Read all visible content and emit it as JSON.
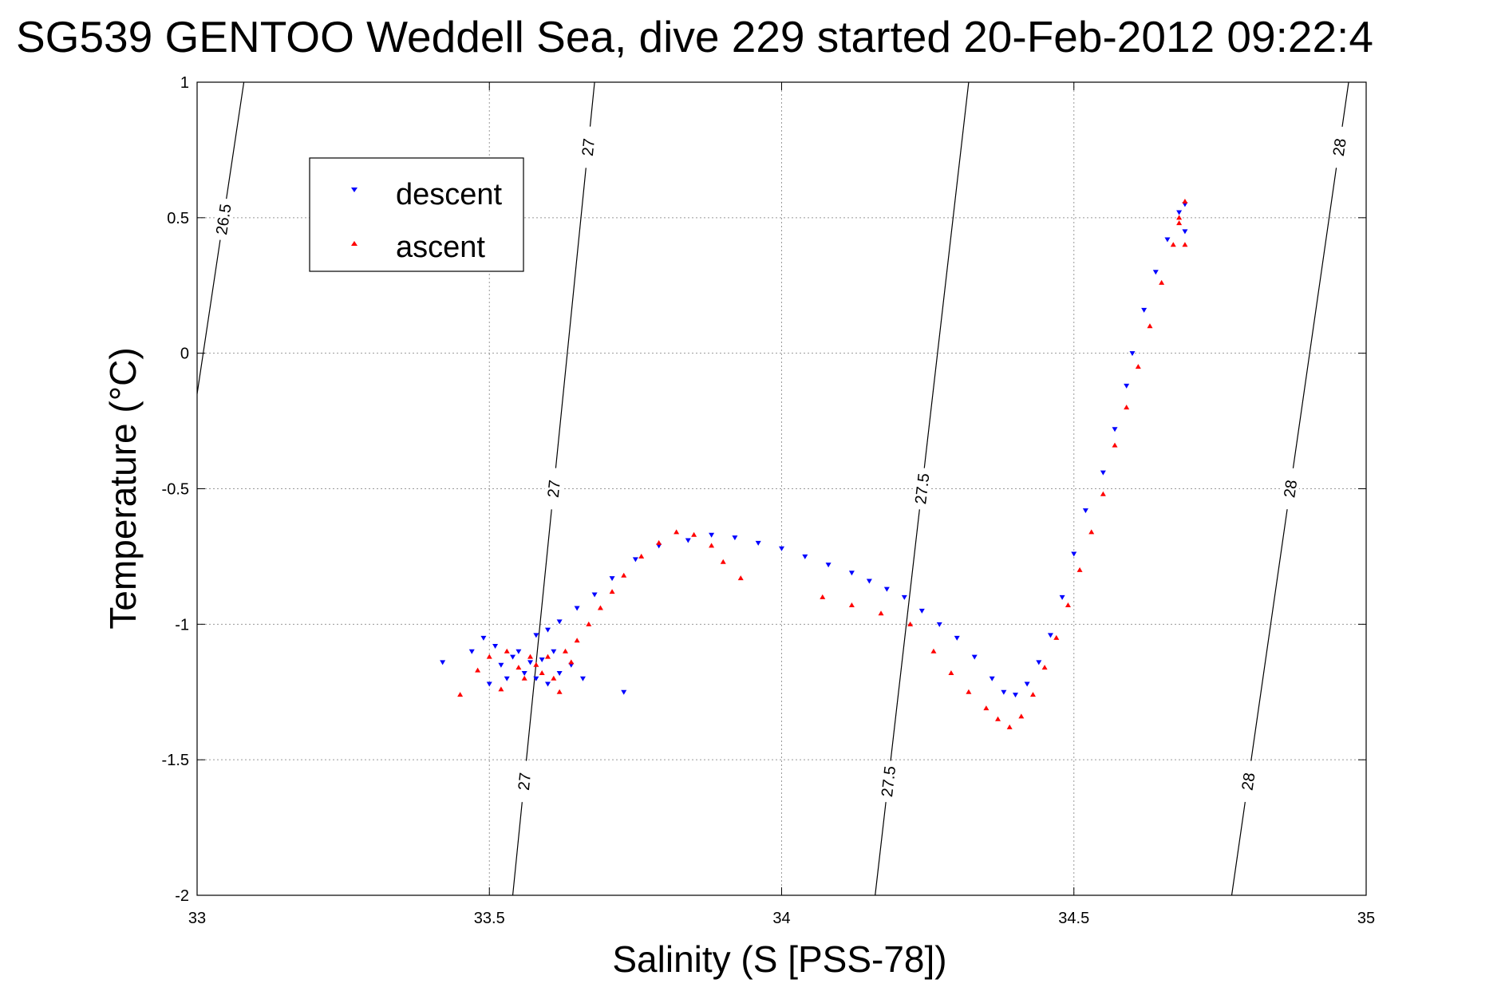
{
  "chart_data": {
    "type": "scatter",
    "title": "SG539 GENTOO Weddell Sea, dive 229 started 20-Feb-2012 09:22:4",
    "xlabel": "Salinity (S [PSS-78])",
    "ylabel": "Temperature (°C)",
    "xlim": [
      33,
      35
    ],
    "ylim": [
      -2,
      1
    ],
    "xticks": [
      33,
      33.5,
      34,
      34.5,
      35
    ],
    "xtick_labels": [
      "33",
      "33.5",
      "34",
      "34.5",
      "35"
    ],
    "yticks": [
      -2,
      -1.5,
      -1,
      -0.5,
      0,
      0.5,
      1
    ],
    "ytick_labels": [
      "-2",
      "-1.5",
      "-1",
      "-0.5",
      "0",
      "0.5",
      "1"
    ],
    "grid": true,
    "legend_position": "top-left",
    "series": [
      {
        "name": "descent",
        "color": "#0000ff",
        "marker": "triangle-down",
        "points": [
          [
            33.42,
            -1.14
          ],
          [
            33.47,
            -1.1
          ],
          [
            33.49,
            -1.05
          ],
          [
            33.5,
            -1.22
          ],
          [
            33.51,
            -1.08
          ],
          [
            33.52,
            -1.15
          ],
          [
            33.53,
            -1.2
          ],
          [
            33.54,
            -1.12
          ],
          [
            33.55,
            -1.1
          ],
          [
            33.56,
            -1.18
          ],
          [
            33.57,
            -1.14
          ],
          [
            33.58,
            -1.2
          ],
          [
            33.59,
            -1.13
          ],
          [
            33.6,
            -1.22
          ],
          [
            33.61,
            -1.1
          ],
          [
            33.62,
            -1.18
          ],
          [
            33.64,
            -1.15
          ],
          [
            33.66,
            -1.2
          ],
          [
            33.73,
            -1.25
          ],
          [
            33.58,
            -1.04
          ],
          [
            33.6,
            -1.02
          ],
          [
            33.62,
            -0.99
          ],
          [
            33.65,
            -0.94
          ],
          [
            33.68,
            -0.89
          ],
          [
            33.71,
            -0.83
          ],
          [
            33.75,
            -0.76
          ],
          [
            33.79,
            -0.71
          ],
          [
            33.84,
            -0.69
          ],
          [
            33.88,
            -0.67
          ],
          [
            33.92,
            -0.68
          ],
          [
            33.96,
            -0.7
          ],
          [
            34.0,
            -0.72
          ],
          [
            34.04,
            -0.75
          ],
          [
            34.08,
            -0.78
          ],
          [
            34.12,
            -0.81
          ],
          [
            34.15,
            -0.84
          ],
          [
            34.18,
            -0.87
          ],
          [
            34.21,
            -0.9
          ],
          [
            34.24,
            -0.95
          ],
          [
            34.27,
            -1.0
          ],
          [
            34.3,
            -1.05
          ],
          [
            34.33,
            -1.12
          ],
          [
            34.36,
            -1.2
          ],
          [
            34.38,
            -1.25
          ],
          [
            34.4,
            -1.26
          ],
          [
            34.42,
            -1.22
          ],
          [
            34.44,
            -1.14
          ],
          [
            34.46,
            -1.04
          ],
          [
            34.48,
            -0.9
          ],
          [
            34.5,
            -0.74
          ],
          [
            34.52,
            -0.58
          ],
          [
            34.55,
            -0.44
          ],
          [
            34.57,
            -0.28
          ],
          [
            34.59,
            -0.12
          ],
          [
            34.6,
            0.0
          ],
          [
            34.62,
            0.16
          ],
          [
            34.64,
            0.3
          ],
          [
            34.66,
            0.42
          ],
          [
            34.68,
            0.52
          ],
          [
            34.69,
            0.55
          ],
          [
            34.69,
            0.45
          ]
        ]
      },
      {
        "name": "ascent",
        "color": "#ff0000",
        "marker": "triangle-up",
        "points": [
          [
            33.45,
            -1.26
          ],
          [
            33.48,
            -1.17
          ],
          [
            33.5,
            -1.12
          ],
          [
            33.52,
            -1.24
          ],
          [
            33.53,
            -1.1
          ],
          [
            33.55,
            -1.16
          ],
          [
            33.56,
            -1.2
          ],
          [
            33.57,
            -1.12
          ],
          [
            33.58,
            -1.15
          ],
          [
            33.59,
            -1.18
          ],
          [
            33.6,
            -1.12
          ],
          [
            33.61,
            -1.2
          ],
          [
            33.62,
            -1.25
          ],
          [
            33.63,
            -1.1
          ],
          [
            33.64,
            -1.14
          ],
          [
            33.65,
            -1.06
          ],
          [
            33.67,
            -1.0
          ],
          [
            33.69,
            -0.94
          ],
          [
            33.71,
            -0.88
          ],
          [
            33.73,
            -0.82
          ],
          [
            33.76,
            -0.75
          ],
          [
            33.79,
            -0.7
          ],
          [
            33.82,
            -0.66
          ],
          [
            33.85,
            -0.67
          ],
          [
            33.88,
            -0.71
          ],
          [
            33.9,
            -0.77
          ],
          [
            33.93,
            -0.83
          ],
          [
            34.07,
            -0.9
          ],
          [
            34.12,
            -0.93
          ],
          [
            34.17,
            -0.96
          ],
          [
            34.22,
            -1.0
          ],
          [
            34.26,
            -1.1
          ],
          [
            34.29,
            -1.18
          ],
          [
            34.32,
            -1.25
          ],
          [
            34.35,
            -1.31
          ],
          [
            34.37,
            -1.35
          ],
          [
            34.39,
            -1.38
          ],
          [
            34.41,
            -1.34
          ],
          [
            34.43,
            -1.26
          ],
          [
            34.45,
            -1.16
          ],
          [
            34.47,
            -1.05
          ],
          [
            34.49,
            -0.93
          ],
          [
            34.51,
            -0.8
          ],
          [
            34.53,
            -0.66
          ],
          [
            34.55,
            -0.52
          ],
          [
            34.57,
            -0.34
          ],
          [
            34.59,
            -0.2
          ],
          [
            34.61,
            -0.05
          ],
          [
            34.63,
            0.1
          ],
          [
            34.65,
            0.26
          ],
          [
            34.67,
            0.4
          ],
          [
            34.68,
            0.5
          ],
          [
            34.69,
            0.56
          ],
          [
            34.68,
            0.48
          ],
          [
            34.69,
            0.4
          ]
        ]
      }
    ],
    "isopycnals": [
      {
        "level": "26.5",
        "labels": [
          "26.5"
        ]
      },
      {
        "level": "27",
        "labels": [
          "27",
          "27",
          "27"
        ]
      },
      {
        "level": "27.5",
        "labels": [
          "27.5",
          "27.5"
        ]
      },
      {
        "level": "28",
        "labels": [
          "28",
          "28",
          "28"
        ]
      }
    ]
  }
}
